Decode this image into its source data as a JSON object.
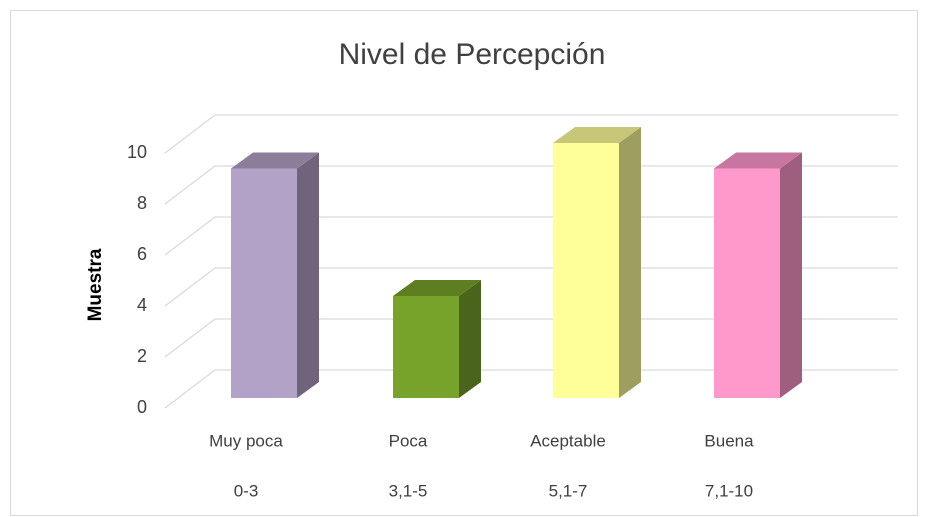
{
  "chart_data": {
    "type": "bar3d",
    "title": "Nivel de Percepción",
    "y_label": "Muestra",
    "categories": [
      [
        "Muy poca",
        "0-3"
      ],
      [
        "Poca",
        "3,1-5"
      ],
      [
        "Aceptable",
        "5,1-7"
      ],
      [
        "Buena",
        "7,1-10"
      ]
    ],
    "values": [
      9,
      4,
      10,
      9
    ],
    "colors": [
      "#b3a2c7",
      "#77a32b",
      "#ffff99",
      "#ff99cc"
    ],
    "ylim": [
      0,
      10
    ],
    "yticks": [
      0,
      2,
      4,
      6,
      8,
      10
    ],
    "grid": true
  }
}
